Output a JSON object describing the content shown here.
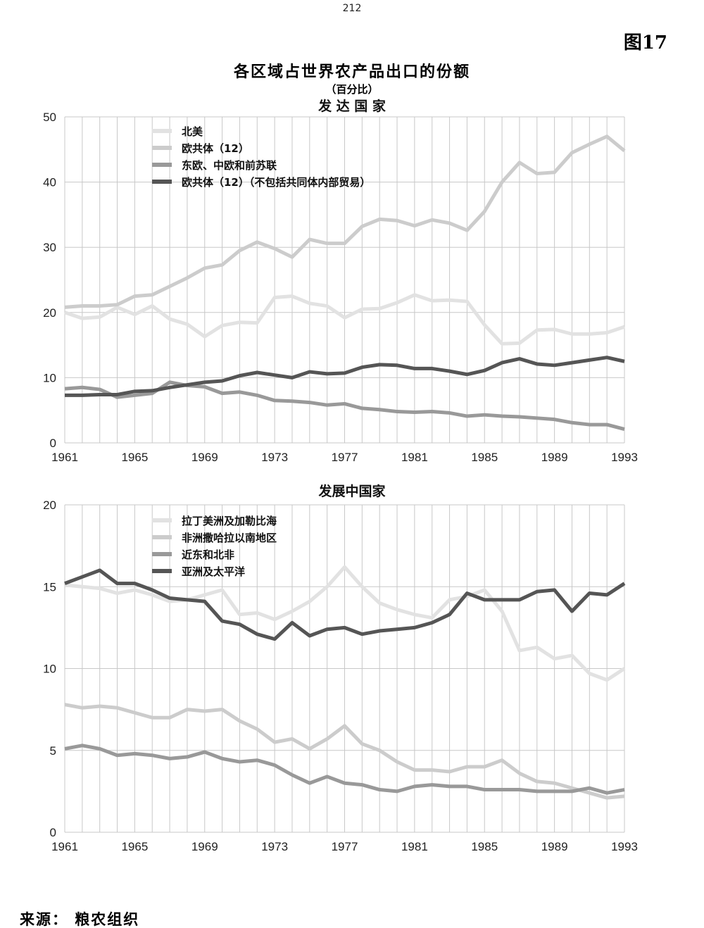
{
  "page_number": "212",
  "figure_label": "图17",
  "title": "各区域占世界农产品出口的份额",
  "subtitle": "（百分比）",
  "source": "来源： 粮农组织",
  "chart_data": [
    {
      "type": "line",
      "title": "发 达 国 家",
      "xlabel": "",
      "ylabel": "",
      "x": [
        1961,
        1962,
        1963,
        1964,
        1965,
        1966,
        1967,
        1968,
        1969,
        1970,
        1971,
        1972,
        1973,
        1974,
        1975,
        1976,
        1977,
        1978,
        1979,
        1980,
        1981,
        1982,
        1983,
        1984,
        1985,
        1986,
        1987,
        1988,
        1989,
        1990,
        1991,
        1992,
        1993
      ],
      "xticks": [
        "1961",
        "1965",
        "1969",
        "1973",
        "1977",
        "1981",
        "1985",
        "1989",
        "1993"
      ],
      "yticks": [
        "0",
        "10",
        "20",
        "30",
        "40",
        "50"
      ],
      "ylim": [
        0,
        50
      ],
      "grid": true,
      "legend": "top-left",
      "series": [
        {
          "name": "北美",
          "color": "#e2e2e2",
          "values": [
            20,
            19.1,
            19.3,
            20.8,
            19.7,
            21,
            19,
            18.2,
            16.3,
            18,
            18.5,
            18.4,
            22.3,
            22.5,
            21.4,
            21,
            19.2,
            20.5,
            20.6,
            21.5,
            22.7,
            21.8,
            21.9,
            21.7,
            18.1,
            15.2,
            15.3,
            17.3,
            17.4,
            16.7,
            16.7,
            16.9,
            17.8
          ]
        },
        {
          "name": "欧共体（12）",
          "color": "#cccccc",
          "values": [
            20.8,
            21,
            21,
            21.2,
            22.5,
            22.7,
            24,
            25.3,
            26.8,
            27.3,
            29.5,
            30.8,
            29.8,
            28.5,
            31.2,
            30.6,
            30.6,
            33.2,
            34.3,
            34.1,
            33.3,
            34.2,
            33.7,
            32.6,
            35.5,
            40,
            43,
            41.3,
            41.5,
            44.5,
            45.8,
            47,
            44.8
          ]
        },
        {
          "name": "东欧、中欧和前苏联",
          "color": "#999999",
          "values": [
            8.3,
            8.5,
            8.2,
            7.0,
            7.3,
            7.6,
            9.3,
            8.8,
            8.6,
            7.6,
            7.8,
            7.3,
            6.5,
            6.4,
            6.2,
            5.8,
            6,
            5.3,
            5.1,
            4.8,
            4.7,
            4.8,
            4.6,
            4.1,
            4.3,
            4.1,
            4,
            3.8,
            3.6,
            3.1,
            2.8,
            2.8,
            2.1
          ]
        },
        {
          "name": "欧共体（12）（不包括共同体内部贸易）",
          "color": "#555555",
          "values": [
            7.3,
            7.3,
            7.4,
            7.4,
            7.9,
            8.0,
            8.5,
            8.9,
            9.3,
            9.5,
            10.3,
            10.8,
            10.4,
            10.0,
            10.9,
            10.6,
            10.7,
            11.6,
            12,
            11.9,
            11.4,
            11.4,
            11.0,
            10.5,
            11.1,
            12.3,
            12.9,
            12.1,
            11.9,
            12.3,
            12.7,
            13.1,
            12.5
          ]
        }
      ]
    },
    {
      "type": "line",
      "title": "发展中国家",
      "xlabel": "",
      "ylabel": "",
      "x": [
        1961,
        1962,
        1963,
        1964,
        1965,
        1966,
        1967,
        1968,
        1969,
        1970,
        1971,
        1972,
        1973,
        1974,
        1975,
        1976,
        1977,
        1978,
        1979,
        1980,
        1981,
        1982,
        1983,
        1984,
        1985,
        1986,
        1987,
        1988,
        1989,
        1990,
        1991,
        1992,
        1993
      ],
      "xticks": [
        "1961",
        "1965",
        "1969",
        "1973",
        "1977",
        "1981",
        "1985",
        "1989",
        "1993"
      ],
      "yticks": [
        "0",
        "5",
        "10",
        "15",
        "20"
      ],
      "ylim": [
        0,
        20
      ],
      "grid": true,
      "legend": "top-left",
      "series": [
        {
          "name": "拉丁美洲及加勒比海",
          "color": "#e2e2e2",
          "values": [
            15.1,
            15,
            14.9,
            14.6,
            14.8,
            14.5,
            14.1,
            14.2,
            14.5,
            14.8,
            13.3,
            13.4,
            13.0,
            13.5,
            14.1,
            15,
            16.2,
            15,
            14,
            13.6,
            13.3,
            13.1,
            14.2,
            14.4,
            14.8,
            13.5,
            11.1,
            11.3,
            10.6,
            10.8,
            9.7,
            9.3,
            10
          ]
        },
        {
          "name": "非洲撒哈拉以南地区",
          "color": "#cccccc",
          "values": [
            7.8,
            7.6,
            7.7,
            7.6,
            7.3,
            7,
            7,
            7.5,
            7.4,
            7.5,
            6.8,
            6.3,
            5.5,
            5.7,
            5.1,
            5.7,
            6.5,
            5.4,
            5,
            4.3,
            3.8,
            3.8,
            3.7,
            4,
            4,
            4.4,
            3.6,
            3.1,
            3,
            2.7,
            2.4,
            2.1,
            2.2
          ]
        },
        {
          "name": "近东和北非",
          "color": "#999999",
          "values": [
            5.1,
            5.3,
            5.1,
            4.7,
            4.8,
            4.7,
            4.5,
            4.6,
            4.9,
            4.5,
            4.3,
            4.4,
            4.1,
            3.5,
            3,
            3.4,
            3,
            2.9,
            2.6,
            2.5,
            2.8,
            2.9,
            2.8,
            2.8,
            2.6,
            2.6,
            2.6,
            2.5,
            2.5,
            2.5,
            2.7,
            2.4,
            2.6
          ]
        },
        {
          "name": "亚洲及太平洋",
          "color": "#555555",
          "values": [
            15.2,
            15.6,
            16,
            15.2,
            15.2,
            14.8,
            14.3,
            14.2,
            14.1,
            12.9,
            12.7,
            12.1,
            11.8,
            12.8,
            12,
            12.4,
            12.5,
            12.1,
            12.3,
            12.4,
            12.5,
            12.8,
            13.3,
            14.6,
            14.2,
            14.2,
            14.2,
            14.7,
            14.8,
            13.5,
            14.6,
            14.5,
            15.2
          ]
        }
      ]
    }
  ]
}
